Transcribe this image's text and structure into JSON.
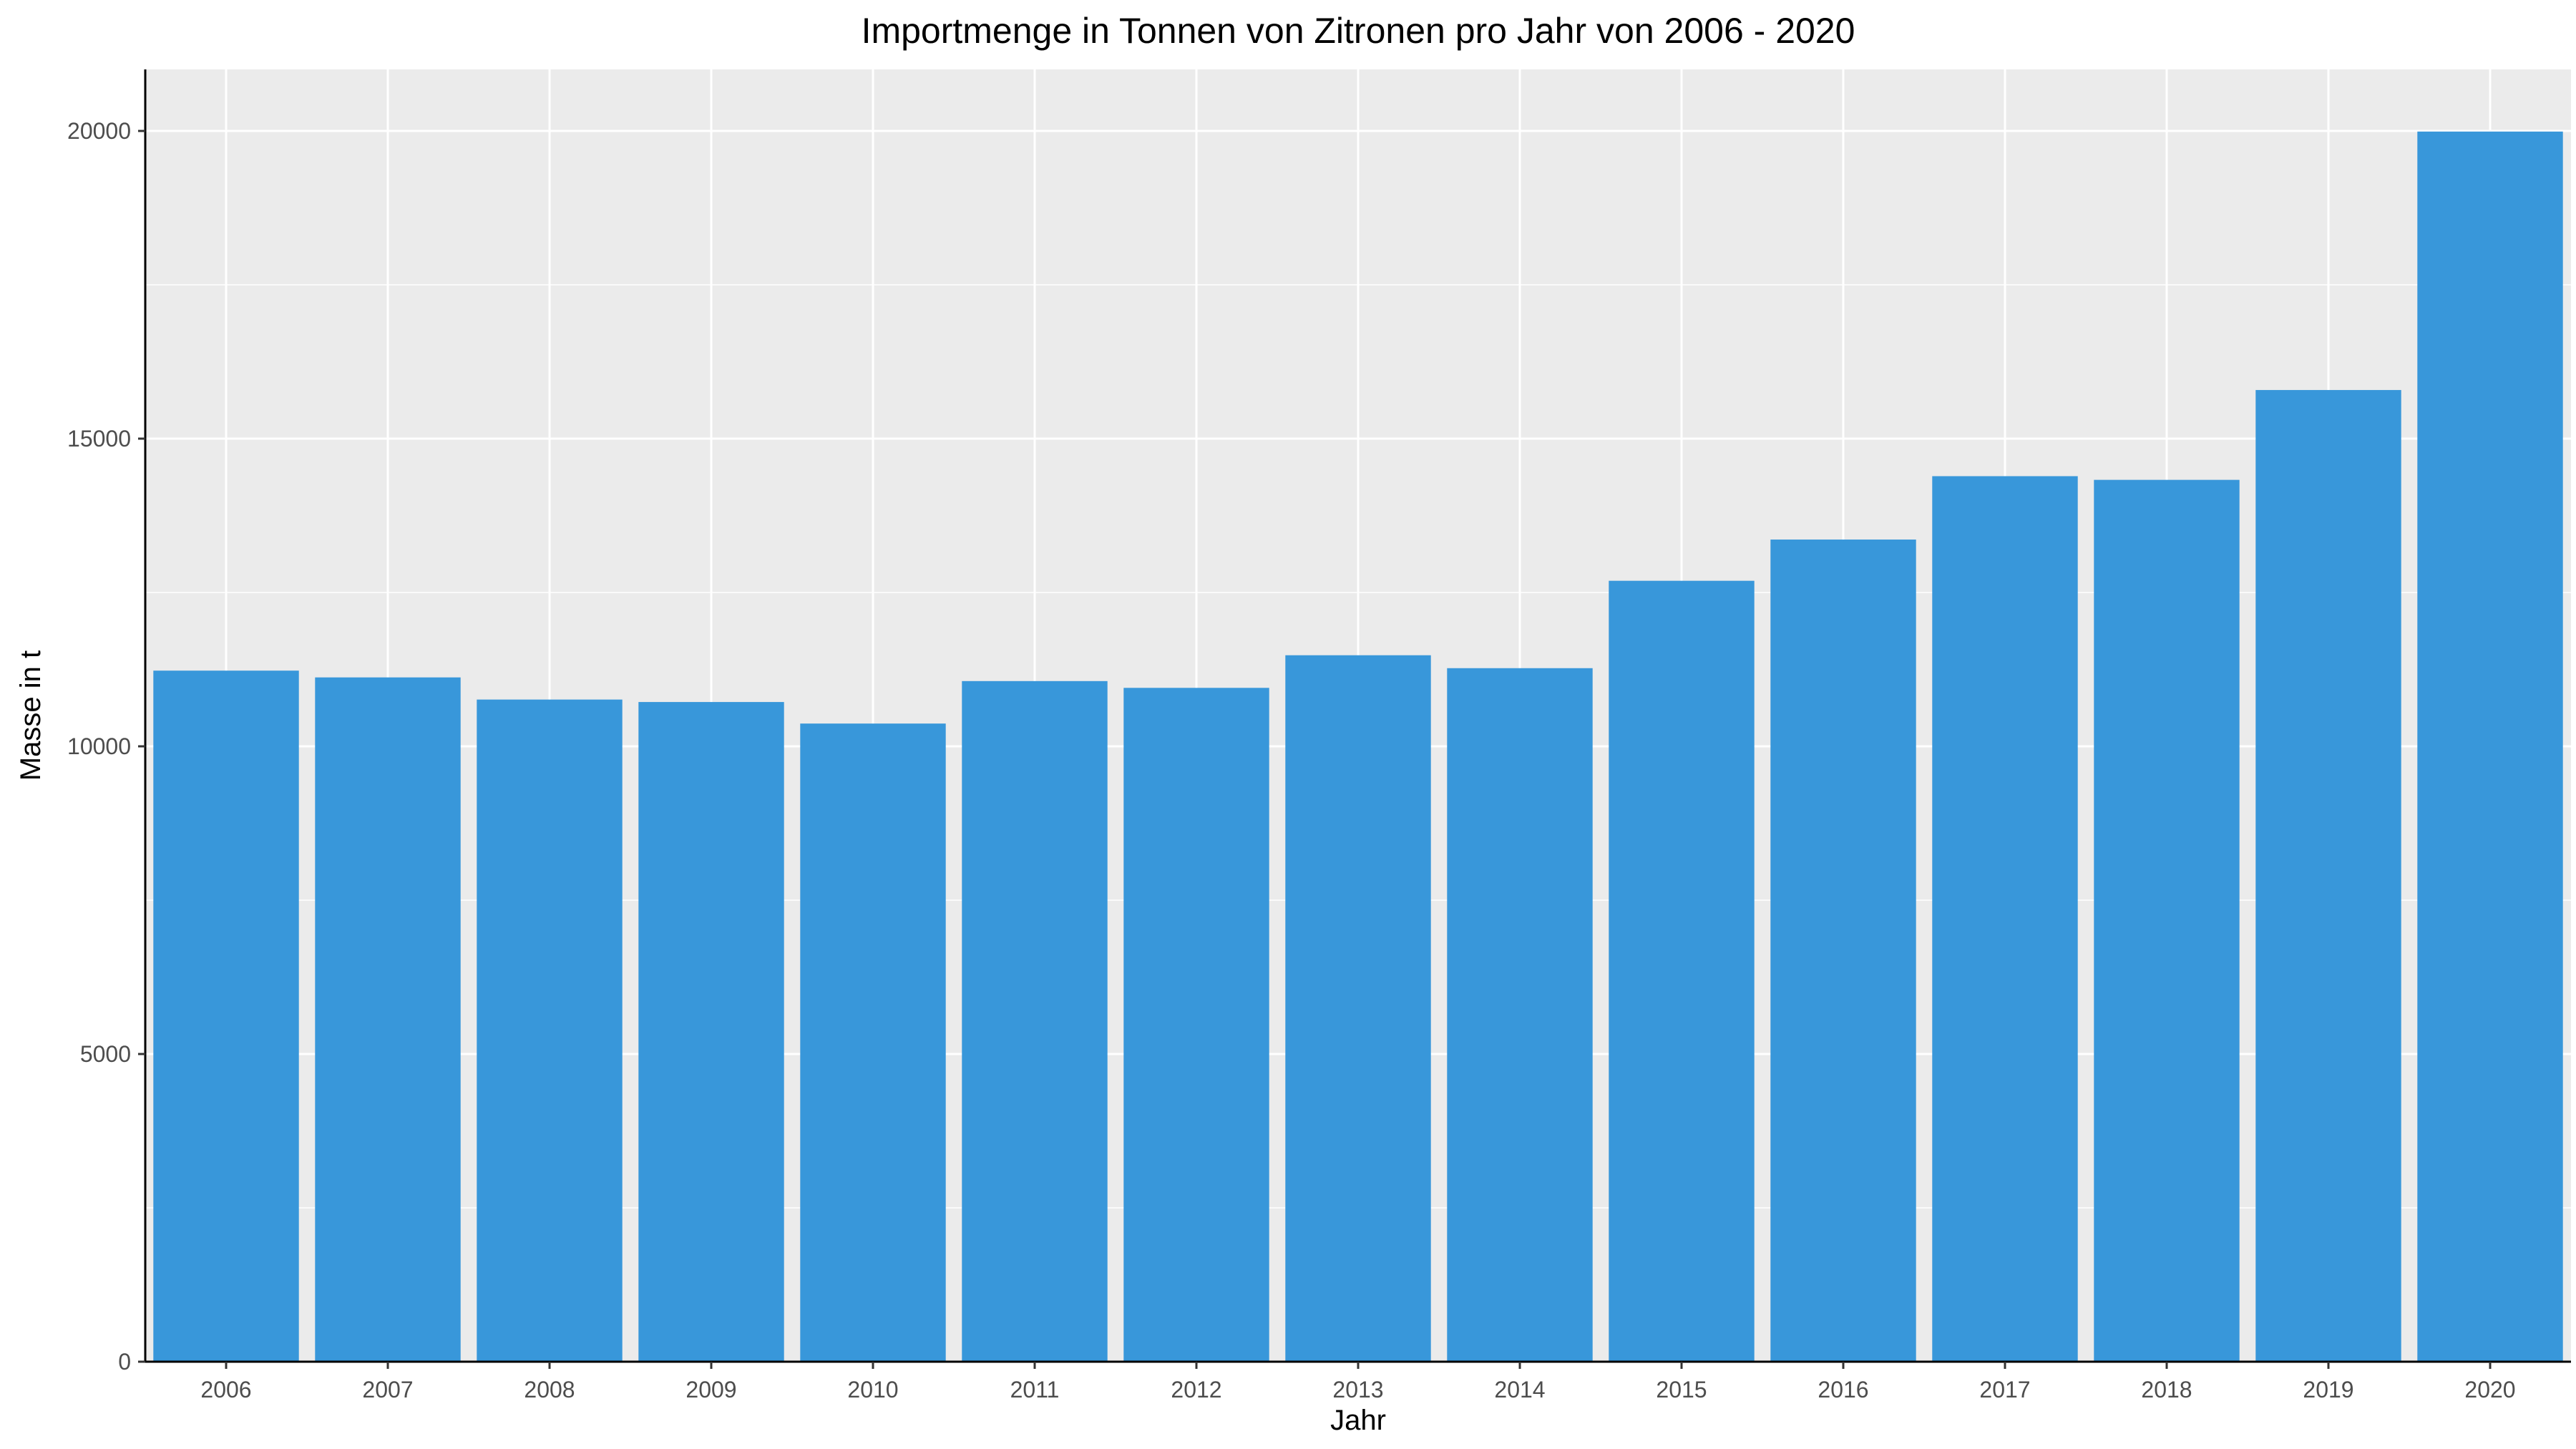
{
  "chart_data": {
    "type": "bar",
    "title": "Importmenge in Tonnen von Zitronen pro Jahr von 2006 - 2020",
    "xlabel": "Jahr",
    "ylabel": "Masse in t",
    "categories": [
      "2006",
      "2007",
      "2008",
      "2009",
      "2010",
      "2011",
      "2012",
      "2013",
      "2014",
      "2015",
      "2016",
      "2017",
      "2018",
      "2019",
      "2020"
    ],
    "values": [
      11230,
      11120,
      10760,
      10720,
      10370,
      11060,
      10950,
      11480,
      11270,
      12690,
      13360,
      14390,
      14330,
      15790,
      19990
    ],
    "ylim": [
      0,
      21000
    ],
    "yticks": [
      0,
      5000,
      10000,
      15000,
      20000
    ],
    "ytick_labels": [
      "0",
      "5000",
      "10000",
      "15000",
      "20000"
    ],
    "grid": true,
    "colors": {
      "bar": "#3897DA",
      "panel": "#EBEBEB",
      "grid": "#FFFFFF",
      "axis": "#000000"
    }
  }
}
